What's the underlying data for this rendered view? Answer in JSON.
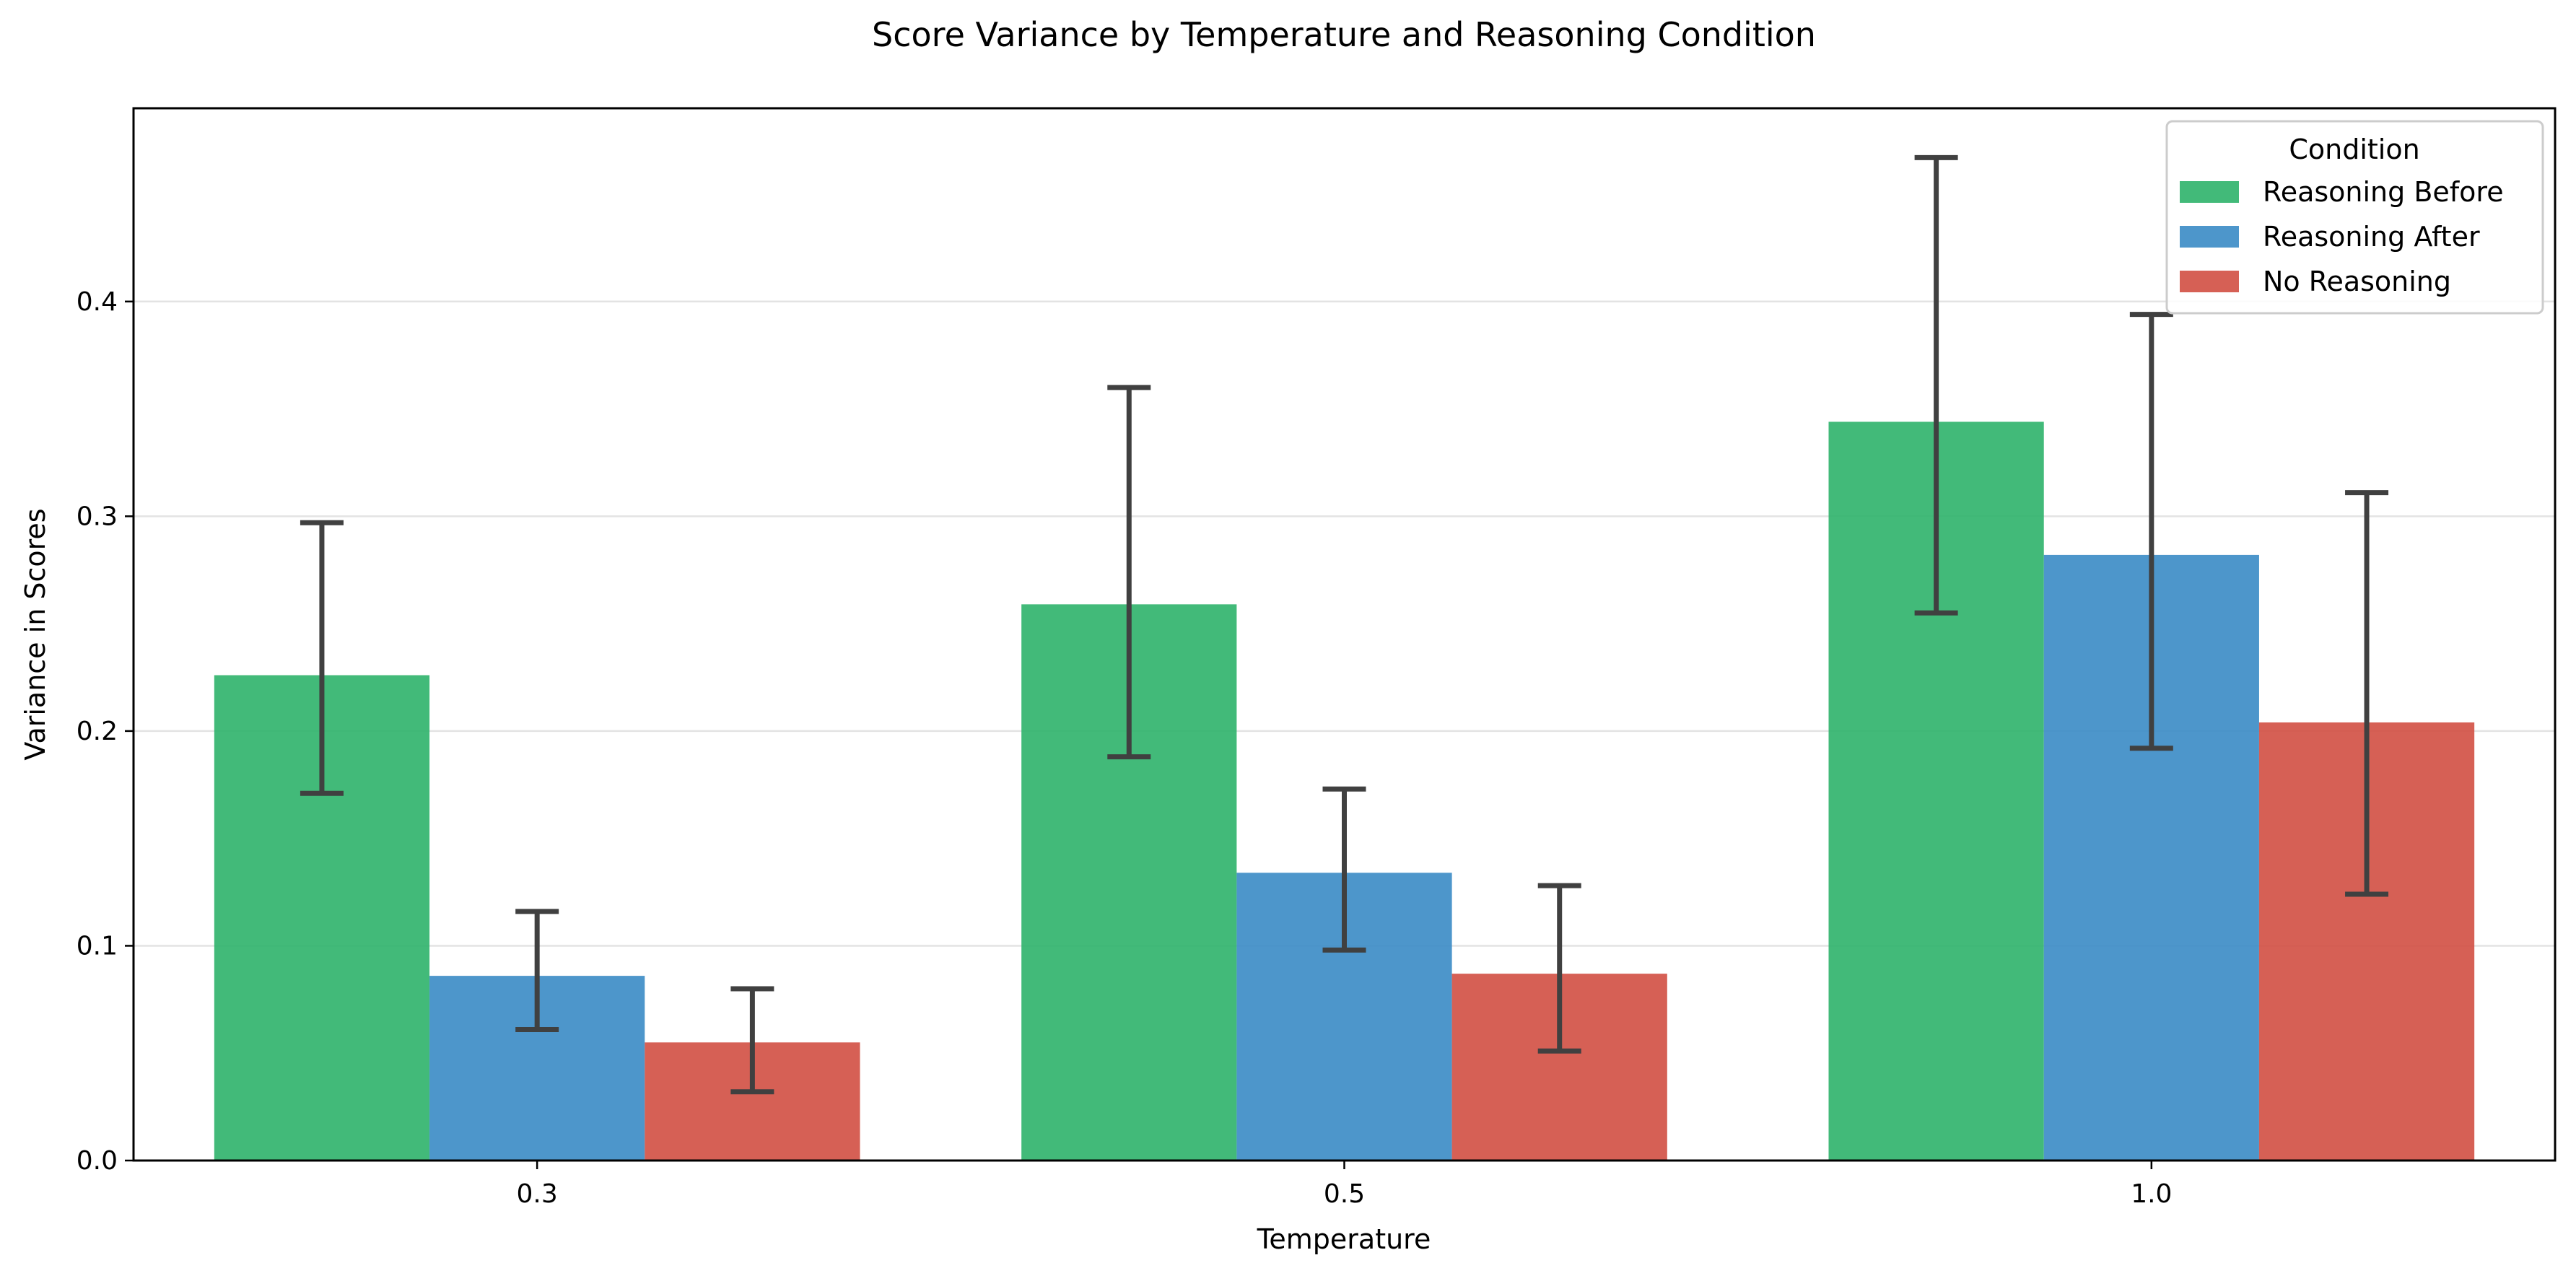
{
  "chart_data": {
    "type": "bar",
    "title": "Score Variance by Temperature and Reasoning Condition",
    "xlabel": "Temperature",
    "ylabel": "Variance in Scores",
    "categories": [
      "0.3",
      "0.5",
      "1.0"
    ],
    "ylim": [
      0,
      0.49
    ],
    "yticks": [
      0.0,
      0.1,
      0.2,
      0.3,
      0.4
    ],
    "ytick_labels": [
      "0.0",
      "0.1",
      "0.2",
      "0.3",
      "0.4"
    ],
    "grid": "horizontal",
    "legend": {
      "title": "Condition",
      "placement": "top-right"
    },
    "series": [
      {
        "name": "Reasoning Before",
        "color": "#2eb36a",
        "values": [
          0.226,
          0.259,
          0.344
        ],
        "error_low": [
          0.171,
          0.188,
          0.255
        ],
        "error_high": [
          0.297,
          0.36,
          0.467
        ]
      },
      {
        "name": "Reasoning After",
        "color": "#3a8bc5",
        "values": [
          0.086,
          0.134,
          0.282
        ],
        "error_low": [
          0.061,
          0.098,
          0.192
        ],
        "error_high": [
          0.116,
          0.173,
          0.394
        ]
      },
      {
        "name": "No Reasoning",
        "color": "#d14f43",
        "values": [
          0.055,
          0.087,
          0.204
        ],
        "error_low": [
          0.032,
          0.051,
          0.124
        ],
        "error_high": [
          0.08,
          0.128,
          0.311
        ]
      }
    ]
  }
}
